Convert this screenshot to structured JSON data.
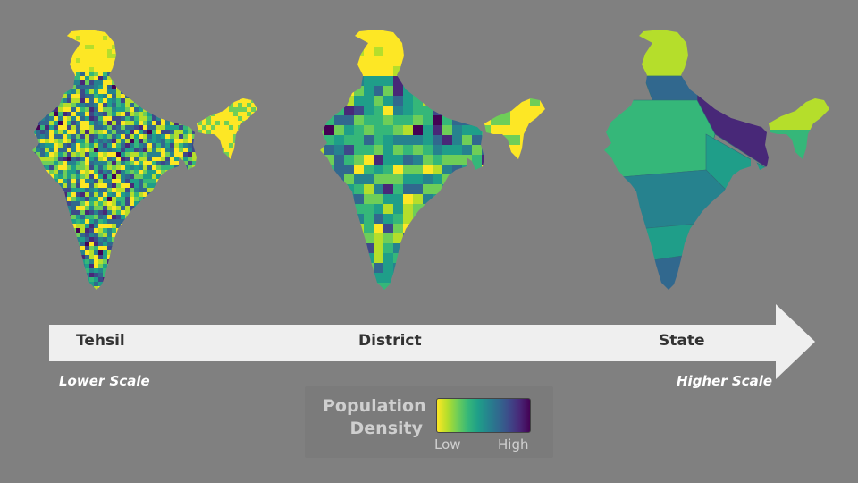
{
  "maps": [
    {
      "level": "Tehsil",
      "detail": "fine"
    },
    {
      "level": "District",
      "detail": "medium"
    },
    {
      "level": "State",
      "detail": "coarse"
    }
  ],
  "scale_arrow": {
    "labels": [
      "Tehsil",
      "District",
      "State"
    ],
    "lower_label": "Lower Scale",
    "higher_label": "Higher Scale",
    "color": "#efefef"
  },
  "legend": {
    "title": "Population Density",
    "low_label": "Low",
    "high_label": "High",
    "colormap": "viridis",
    "colors": [
      "#fde725",
      "#b5de2b",
      "#6ece58",
      "#35b779",
      "#1f9e89",
      "#26828e",
      "#31688e",
      "#3e4989",
      "#482878",
      "#440154"
    ]
  }
}
